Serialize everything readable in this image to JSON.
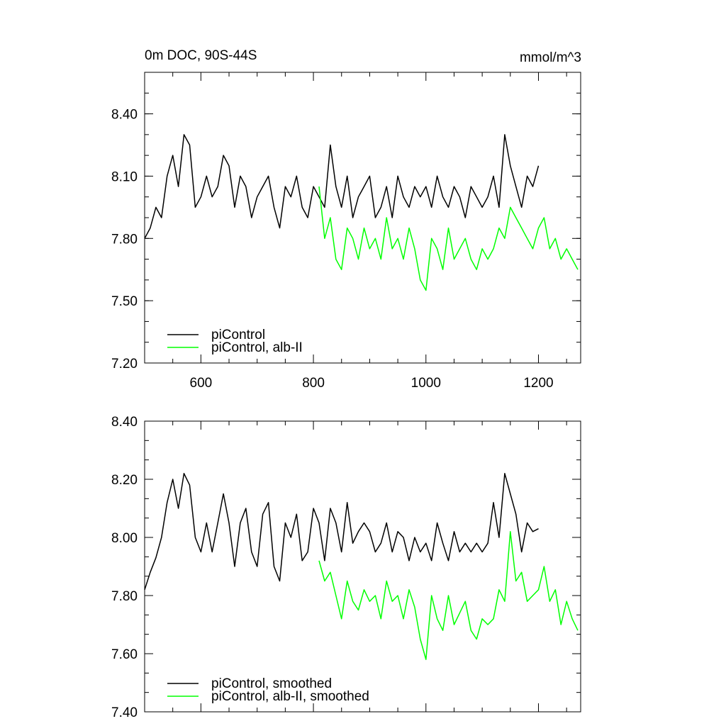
{
  "chart_data": [
    {
      "type": "line",
      "title": "0m DOC, 90S-44S",
      "units": "mmol/m^3",
      "xlim": [
        500,
        1275
      ],
      "ylim": [
        7.2,
        8.6
      ],
      "xticks": [
        "600",
        "800",
        "1000",
        "1200"
      ],
      "yticks": [
        "7.20",
        "7.50",
        "7.80",
        "8.10",
        "8.40"
      ],
      "legend_position": "bottom-left",
      "series": [
        {
          "name": "piControl",
          "color": "#000000",
          "x": [
            500,
            510,
            520,
            530,
            540,
            550,
            560,
            570,
            580,
            590,
            600,
            610,
            620,
            630,
            640,
            650,
            660,
            670,
            680,
            690,
            700,
            710,
            720,
            730,
            740,
            750,
            760,
            770,
            780,
            790,
            800,
            810,
            820,
            830,
            840,
            850,
            860,
            870,
            880,
            890,
            900,
            910,
            920,
            930,
            940,
            950,
            960,
            970,
            980,
            990,
            1000,
            1010,
            1020,
            1030,
            1040,
            1050,
            1060,
            1070,
            1080,
            1090,
            1100,
            1110,
            1120,
            1130,
            1140,
            1150,
            1160,
            1170,
            1180,
            1190,
            1200
          ],
          "values": [
            7.8,
            7.85,
            7.95,
            7.9,
            8.1,
            8.2,
            8.05,
            8.3,
            8.25,
            7.95,
            8.0,
            8.1,
            8.0,
            8.05,
            8.2,
            8.15,
            7.95,
            8.1,
            8.05,
            7.9,
            8.0,
            8.05,
            8.1,
            7.95,
            7.85,
            8.05,
            8.0,
            8.1,
            7.95,
            7.9,
            8.05,
            8.0,
            7.95,
            8.25,
            8.05,
            7.95,
            8.1,
            7.9,
            8.0,
            8.05,
            8.1,
            7.9,
            7.95,
            8.05,
            7.9,
            8.1,
            8.0,
            7.95,
            8.05,
            8.0,
            8.05,
            7.95,
            8.1,
            8.0,
            7.95,
            8.05,
            8.0,
            7.9,
            8.05,
            8.0,
            7.95,
            8.0,
            8.1,
            7.95,
            8.3,
            8.15,
            8.05,
            7.95,
            8.1,
            8.05,
            8.15
          ]
        },
        {
          "name": "piControl, alb-II",
          "color": "#00ff00",
          "x": [
            810,
            820,
            830,
            840,
            850,
            860,
            870,
            880,
            890,
            900,
            910,
            920,
            930,
            940,
            950,
            960,
            970,
            980,
            990,
            1000,
            1010,
            1020,
            1030,
            1040,
            1050,
            1060,
            1070,
            1080,
            1090,
            1100,
            1110,
            1120,
            1130,
            1140,
            1150,
            1160,
            1170,
            1180,
            1190,
            1200,
            1210,
            1220,
            1230,
            1240,
            1250,
            1260,
            1270
          ],
          "values": [
            8.05,
            7.8,
            7.9,
            7.7,
            7.65,
            7.85,
            7.8,
            7.7,
            7.85,
            7.75,
            7.8,
            7.7,
            7.9,
            7.75,
            7.8,
            7.7,
            7.85,
            7.75,
            7.6,
            7.55,
            7.8,
            7.75,
            7.65,
            7.85,
            7.7,
            7.75,
            7.8,
            7.7,
            7.65,
            7.75,
            7.7,
            7.75,
            7.85,
            7.8,
            7.95,
            7.9,
            7.85,
            7.8,
            7.75,
            7.85,
            7.9,
            7.75,
            7.8,
            7.7,
            7.75,
            7.7,
            7.65
          ]
        }
      ]
    },
    {
      "type": "line",
      "xlim": [
        500,
        1275
      ],
      "ylim": [
        7.4,
        8.4
      ],
      "yticks": [
        "7.40",
        "7.60",
        "7.80",
        "8.00",
        "8.20",
        "8.40"
      ],
      "legend_position": "bottom-left",
      "series": [
        {
          "name": "piControl, smoothed",
          "color": "#000000",
          "x": [
            500,
            510,
            520,
            530,
            540,
            550,
            560,
            570,
            580,
            590,
            600,
            610,
            620,
            630,
            640,
            650,
            660,
            670,
            680,
            690,
            700,
            710,
            720,
            730,
            740,
            750,
            760,
            770,
            780,
            790,
            800,
            810,
            820,
            830,
            840,
            850,
            860,
            870,
            880,
            890,
            900,
            910,
            920,
            930,
            940,
            950,
            960,
            970,
            980,
            990,
            1000,
            1010,
            1020,
            1030,
            1040,
            1050,
            1060,
            1070,
            1080,
            1090,
            1100,
            1110,
            1120,
            1130,
            1140,
            1150,
            1160,
            1170,
            1180,
            1190,
            1200
          ],
          "values": [
            7.82,
            7.88,
            7.93,
            8.0,
            8.12,
            8.2,
            8.1,
            8.22,
            8.18,
            8.0,
            7.95,
            8.05,
            7.95,
            8.05,
            8.15,
            8.05,
            7.9,
            8.05,
            8.1,
            7.95,
            7.9,
            8.08,
            8.12,
            7.9,
            7.85,
            8.05,
            8.0,
            8.08,
            7.92,
            7.95,
            8.1,
            8.05,
            7.92,
            8.1,
            8.05,
            7.95,
            8.12,
            7.98,
            8.02,
            8.05,
            8.02,
            7.95,
            7.98,
            8.05,
            7.95,
            8.02,
            8.0,
            7.92,
            8.0,
            7.95,
            7.98,
            7.92,
            8.05,
            7.98,
            7.92,
            8.02,
            7.95,
            7.98,
            7.95,
            7.98,
            7.95,
            7.98,
            8.12,
            8.0,
            8.22,
            8.15,
            8.08,
            7.95,
            8.05,
            8.02,
            8.03
          ]
        },
        {
          "name": "piControl, alb-II, smoothed",
          "color": "#00ff00",
          "x": [
            810,
            820,
            830,
            840,
            850,
            860,
            870,
            880,
            890,
            900,
            910,
            920,
            930,
            940,
            950,
            960,
            970,
            980,
            990,
            1000,
            1010,
            1020,
            1030,
            1040,
            1050,
            1060,
            1070,
            1080,
            1090,
            1100,
            1110,
            1120,
            1130,
            1140,
            1150,
            1160,
            1170,
            1180,
            1190,
            1200,
            1210,
            1220,
            1230,
            1240,
            1250,
            1260,
            1270
          ],
          "values": [
            7.92,
            7.85,
            7.88,
            7.8,
            7.72,
            7.85,
            7.78,
            7.75,
            7.82,
            7.78,
            7.8,
            7.72,
            7.85,
            7.78,
            7.8,
            7.72,
            7.82,
            7.76,
            7.65,
            7.58,
            7.8,
            7.72,
            7.68,
            7.8,
            7.7,
            7.74,
            7.78,
            7.68,
            7.65,
            7.72,
            7.7,
            7.72,
            7.82,
            7.78,
            8.02,
            7.85,
            7.88,
            7.78,
            7.8,
            7.82,
            7.9,
            7.78,
            7.82,
            7.7,
            7.78,
            7.72,
            7.68
          ]
        }
      ]
    }
  ]
}
